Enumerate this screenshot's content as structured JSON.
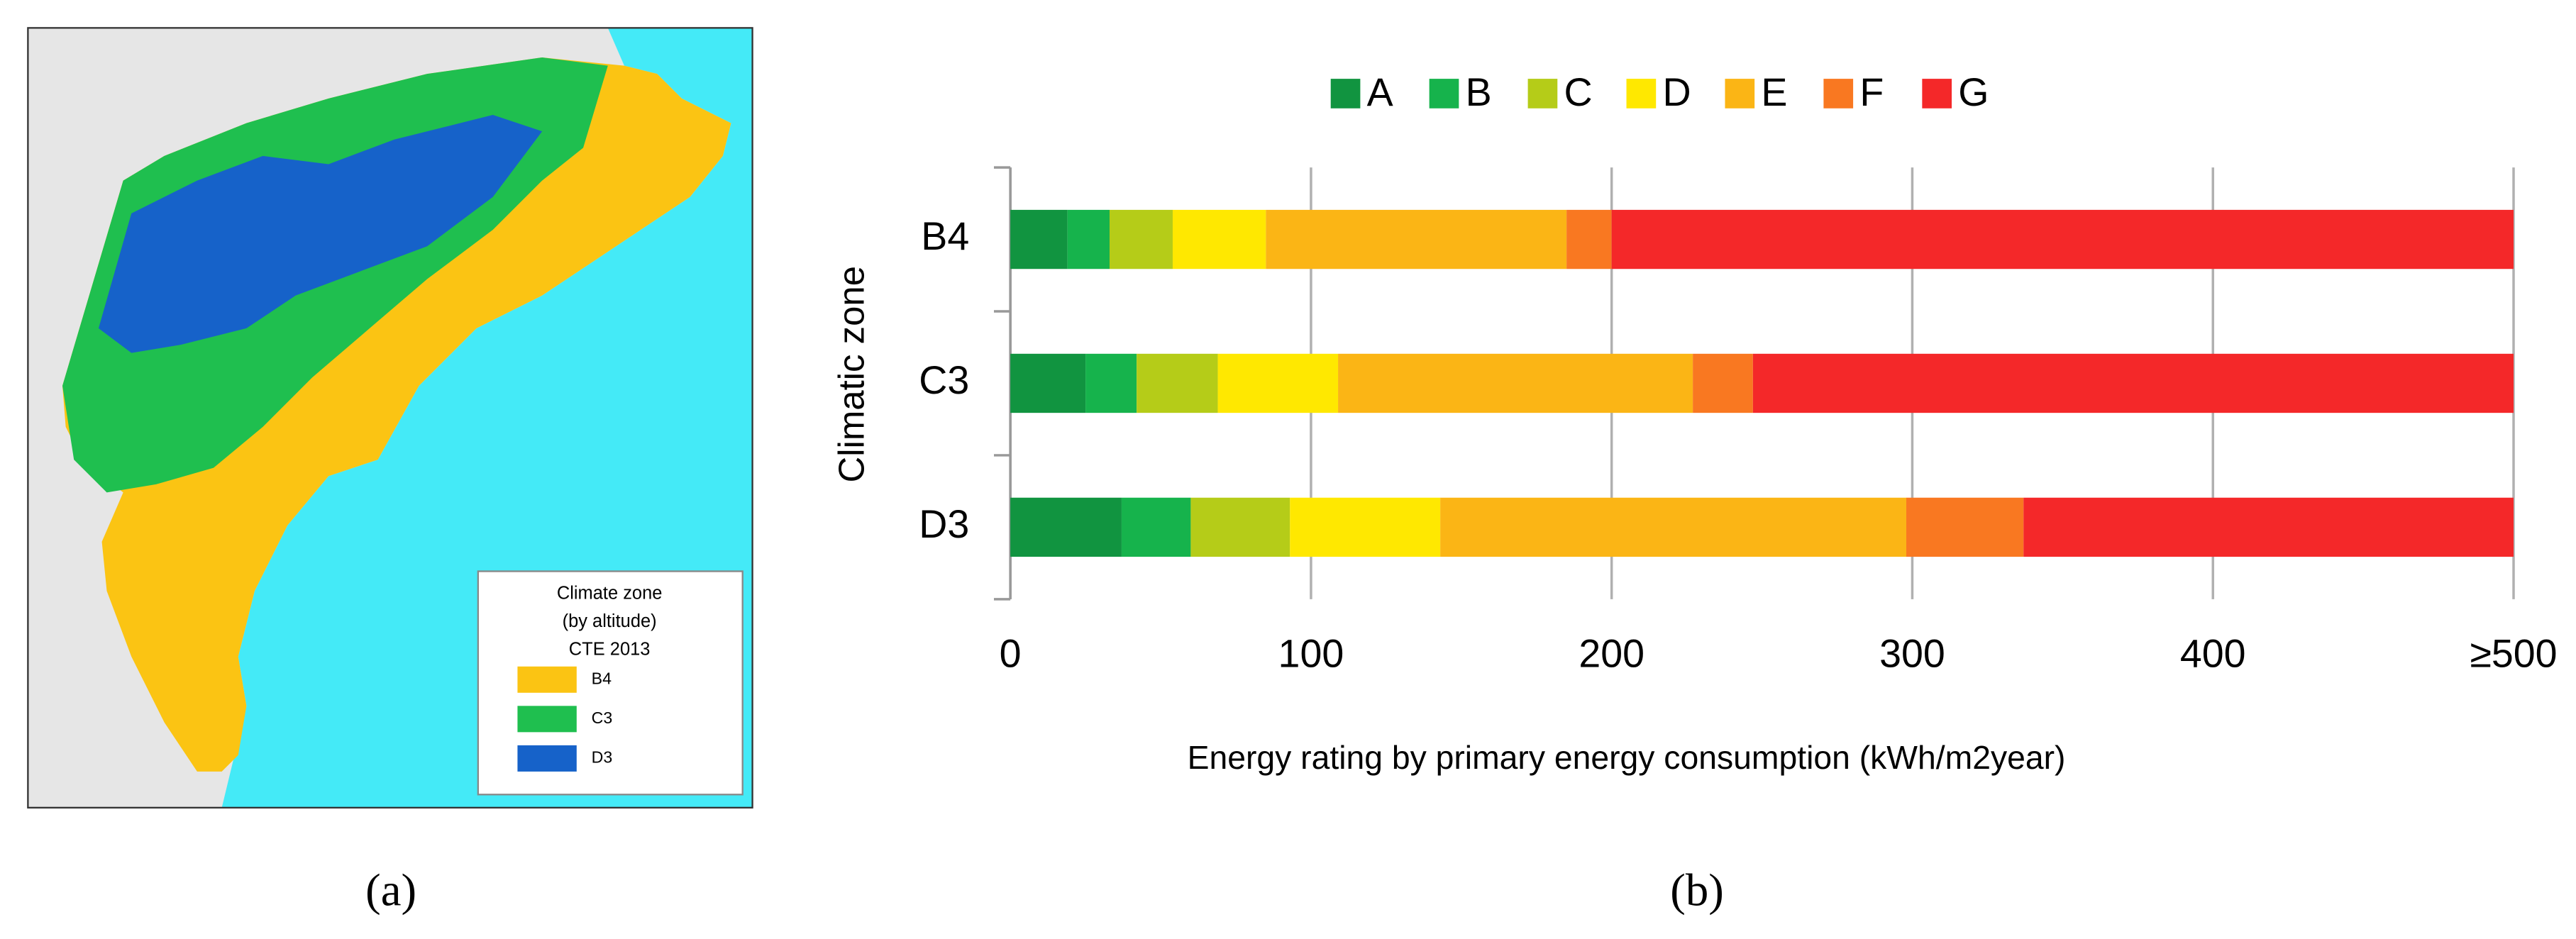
{
  "map": {
    "legend_title": [
      "Climate zone",
      "(by altitude)",
      "CTE 2013"
    ],
    "legend": [
      {
        "label": "B4",
        "color": "#fbc413"
      },
      {
        "label": "C3",
        "color": "#1fbf4f"
      },
      {
        "label": "D3",
        "color": "#1662c9"
      }
    ],
    "caption": "(a)"
  },
  "chart_data": {
    "type": "stacked_barh",
    "caption": "(b)",
    "categories": [
      "B4",
      "C3",
      "D3"
    ],
    "series": [
      {
        "name": "A",
        "color": "#119440",
        "values": [
          19,
          25,
          37
        ]
      },
      {
        "name": "B",
        "color": "#16b34c",
        "values": [
          14,
          17,
          23
        ]
      },
      {
        "name": "C",
        "color": "#b5cc18",
        "values": [
          21,
          27,
          33
        ]
      },
      {
        "name": "D",
        "color": "#ffe800",
        "values": [
          31,
          40,
          50
        ]
      },
      {
        "name": "E",
        "color": "#fbb515",
        "values": [
          100,
          118,
          155
        ]
      },
      {
        "name": "F",
        "color": "#f97821",
        "values": [
          15,
          20,
          39
        ]
      },
      {
        "name": "G",
        "color": "#f42829",
        "values": [
          300,
          253,
          163
        ]
      }
    ],
    "xlabel": "Energy rating by primary energy consumption (kWh/m2year)",
    "ylabel": "Climatic zone",
    "xlim": [
      0,
      500
    ],
    "xticks": [
      0,
      100,
      200,
      300,
      400,
      {
        "value": 500,
        "label": "≥500"
      }
    ],
    "grid": true,
    "legend": "top"
  }
}
